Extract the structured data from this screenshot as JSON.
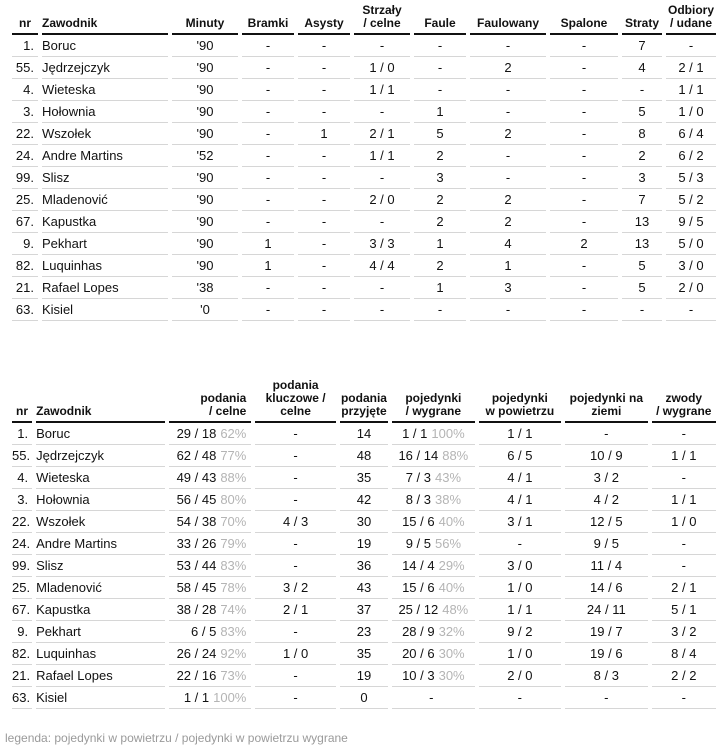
{
  "table1": {
    "headers": [
      "nr",
      "Zawodnik",
      "Minuty",
      "Bramki",
      "Asysty",
      "Strzały\n/ celne",
      "Faule",
      "Faulowany",
      "Spalone",
      "Straty",
      "Odbiory\n/ udane"
    ],
    "rows": [
      [
        "1.",
        "Boruc",
        "'90",
        "-",
        "-",
        "-",
        "-",
        "-",
        "-",
        "7",
        "-"
      ],
      [
        "55.",
        "Jędrzejczyk",
        "'90",
        "-",
        "-",
        "1 / 0",
        "-",
        "2",
        "-",
        "4",
        "2 / 1"
      ],
      [
        "4.",
        "Wieteska",
        "'90",
        "-",
        "-",
        "1 / 1",
        "-",
        "-",
        "-",
        "-",
        "1 / 1"
      ],
      [
        "3.",
        "Hołownia",
        "'90",
        "-",
        "-",
        "-",
        "1",
        "-",
        "-",
        "5",
        "1 / 0"
      ],
      [
        "22.",
        "Wszołek",
        "'90",
        "-",
        "1",
        "2 / 1",
        "5",
        "2",
        "-",
        "8",
        "6 / 4"
      ],
      [
        "24.",
        "Andre Martins",
        "'52",
        "-",
        "-",
        "1 / 1",
        "2",
        "-",
        "-",
        "2",
        "6 / 2"
      ],
      [
        "99.",
        "Slisz",
        "'90",
        "-",
        "-",
        "-",
        "3",
        "-",
        "-",
        "3",
        "5 / 3"
      ],
      [
        "25.",
        "Mladenović",
        "'90",
        "-",
        "-",
        "2 / 0",
        "2",
        "2",
        "-",
        "7",
        "5 / 2"
      ],
      [
        "67.",
        "Kapustka",
        "'90",
        "-",
        "-",
        "-",
        "2",
        "2",
        "-",
        "13",
        "9 / 5"
      ],
      [
        "9.",
        "Pekhart",
        "'90",
        "1",
        "-",
        "3 / 3",
        "1",
        "4",
        "2",
        "13",
        "5 / 0"
      ],
      [
        "82.",
        "Luquinhas",
        "'90",
        "1",
        "-",
        "4 / 4",
        "2",
        "1",
        "-",
        "5",
        "3 / 0"
      ],
      [
        "21.",
        "Rafael Lopes",
        "'38",
        "-",
        "-",
        "-",
        "1",
        "3",
        "-",
        "5",
        "2 / 0"
      ],
      [
        "63.",
        "Kisiel",
        "'0",
        "-",
        "-",
        "-",
        "-",
        "-",
        "-",
        "-",
        "-"
      ]
    ]
  },
  "table2": {
    "headers": [
      "nr",
      "Zawodnik",
      "podania\n/ celne",
      "podania\nkluczowe /\ncelne",
      "podania\nprzyjęte",
      "pojedynki\n/ wygrane",
      "pojedynki\nw powietrzu",
      "pojedynki na\nziemi",
      "zwody\n/ wygrane"
    ],
    "rows": [
      [
        "1.",
        "Boruc",
        "29 / 18",
        "62%",
        "-",
        "14",
        "1 / 1",
        "100%",
        "1 / 1",
        "-",
        "-"
      ],
      [
        "55.",
        "Jędrzejczyk",
        "62 / 48",
        "77%",
        "-",
        "48",
        "16 / 14",
        "88%",
        "6 / 5",
        "10 / 9",
        "1 / 1"
      ],
      [
        "4.",
        "Wieteska",
        "49 / 43",
        "88%",
        "-",
        "35",
        "7 / 3",
        "43%",
        "4 / 1",
        "3 / 2",
        "-"
      ],
      [
        "3.",
        "Hołownia",
        "56 / 45",
        "80%",
        "-",
        "42",
        "8 / 3",
        "38%",
        "4 / 1",
        "4 / 2",
        "1 / 1"
      ],
      [
        "22.",
        "Wszołek",
        "54 / 38",
        "70%",
        "4 / 3",
        "30",
        "15 / 6",
        "40%",
        "3 / 1",
        "12 / 5",
        "1 / 0"
      ],
      [
        "24.",
        "Andre Martins",
        "33 / 26",
        "79%",
        "-",
        "19",
        "9 / 5",
        "56%",
        "-",
        "9 / 5",
        "-"
      ],
      [
        "99.",
        "Slisz",
        "53 / 44",
        "83%",
        "-",
        "36",
        "14 / 4",
        "29%",
        "3 / 0",
        "11 / 4",
        "-"
      ],
      [
        "25.",
        "Mladenović",
        "58 / 45",
        "78%",
        "3 / 2",
        "43",
        "15 / 6",
        "40%",
        "1 / 0",
        "14 / 6",
        "2 / 1"
      ],
      [
        "67.",
        "Kapustka",
        "38 / 28",
        "74%",
        "2 / 1",
        "37",
        "25 / 12",
        "48%",
        "1 / 1",
        "24 / 11",
        "5 / 1"
      ],
      [
        "9.",
        "Pekhart",
        "6 / 5",
        "83%",
        "-",
        "23",
        "28 / 9",
        "32%",
        "9 / 2",
        "19 / 7",
        "3 / 2"
      ],
      [
        "82.",
        "Luquinhas",
        "26 / 24",
        "92%",
        "1 / 0",
        "35",
        "20 / 6",
        "30%",
        "1 / 0",
        "19 / 6",
        "8 / 4"
      ],
      [
        "21.",
        "Rafael Lopes",
        "22 / 16",
        "73%",
        "-",
        "19",
        "10 / 3",
        "30%",
        "2 / 0",
        "8 / 3",
        "2 / 2"
      ],
      [
        "63.",
        "Kisiel",
        "1 / 1",
        "100%",
        "-",
        "0",
        "-",
        "",
        "-",
        "-",
        "-"
      ]
    ]
  },
  "legend": "legenda: pojedynki w powietrzu / pojedynki w powietrzu wygrane"
}
